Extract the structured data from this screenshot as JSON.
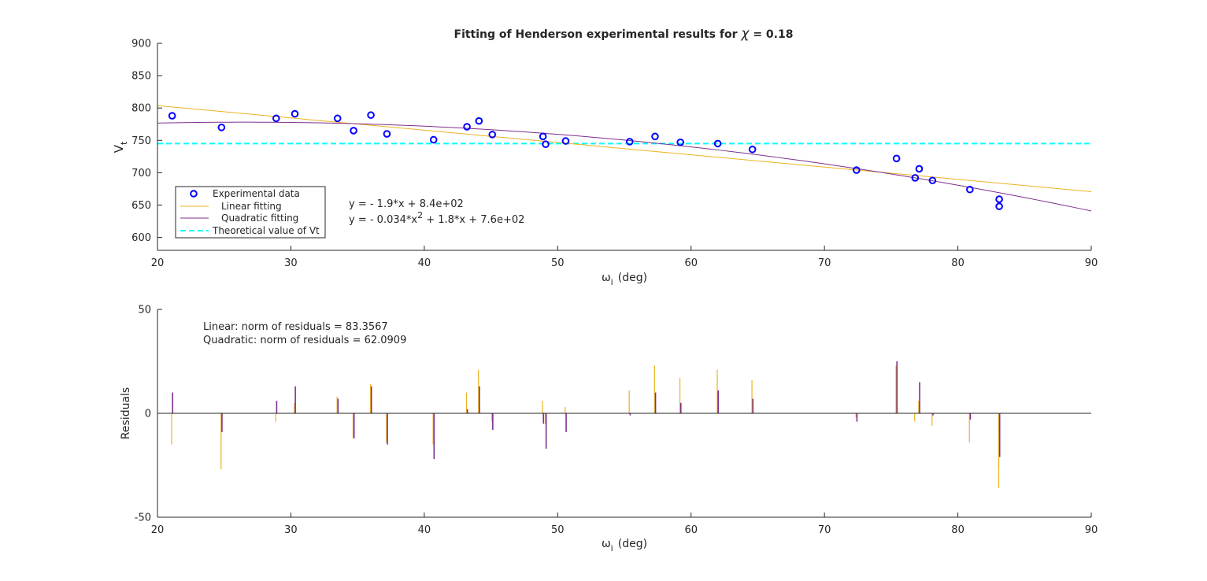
{
  "chart_data": [
    {
      "type": "scatter",
      "title_prefix": "Fitting of Henderson experimental results for",
      "title_symbol": "χ",
      "title_suffix": "= 0.18",
      "xlabel_symbol": "ω",
      "xlabel_sub": "i",
      "xlabel_unit": "(deg)",
      "ylabel_main": "V",
      "ylabel_sub": "t",
      "xlim": [
        20,
        90
      ],
      "ylim": [
        580,
        900
      ],
      "xticks": [
        "20",
        "30",
        "40",
        "50",
        "60",
        "70",
        "80",
        "90"
      ],
      "yticks": [
        "600",
        "650",
        "700",
        "750",
        "800",
        "850",
        "900"
      ],
      "grid": false,
      "legend_placement": "bottom-left",
      "legend": {
        "experimental": "Experimental data",
        "linear": "Linear fitting",
        "quadratic": "Quadratic fitting",
        "theoretical": "Theoretical value of Vt"
      },
      "equations": {
        "linear": "y = - 1.9*x + 8.4e+02",
        "quadratic_pre": "y = - 0.034*x",
        "quadratic_exp": "2",
        "quadratic_post": " + 1.8*x + 7.6e+02"
      },
      "colors": {
        "points": "#0000ff",
        "linear": "#edb120",
        "quadratic": "#7e2f8e",
        "theoretical": "#00ffff"
      },
      "theoretical_value": 745,
      "linear_coeffs": [
        -1.9,
        841.7
      ],
      "quadratic_coeffs": [
        -0.034,
        1.8,
        754.3
      ],
      "points": [
        [
          21.1,
          788
        ],
        [
          24.8,
          770
        ],
        [
          28.9,
          784
        ],
        [
          30.3,
          791
        ],
        [
          33.5,
          784
        ],
        [
          34.7,
          765
        ],
        [
          36.0,
          789
        ],
        [
          37.2,
          760
        ],
        [
          40.7,
          751
        ],
        [
          43.2,
          771
        ],
        [
          44.1,
          780
        ],
        [
          45.1,
          759
        ],
        [
          48.9,
          756
        ],
        [
          49.1,
          744
        ],
        [
          50.6,
          749
        ],
        [
          55.4,
          748
        ],
        [
          57.3,
          756
        ],
        [
          59.2,
          747
        ],
        [
          62.0,
          745
        ],
        [
          64.6,
          736
        ],
        [
          72.4,
          704
        ],
        [
          75.4,
          722
        ],
        [
          76.8,
          692
        ],
        [
          77.1,
          706
        ],
        [
          78.1,
          688
        ],
        [
          80.9,
          674
        ],
        [
          83.1,
          659
        ],
        [
          83.1,
          648
        ]
      ]
    },
    {
      "type": "bar",
      "subtype": "residual stems",
      "xlabel_symbol": "ω",
      "xlabel_sub": "i",
      "xlabel_unit": "(deg)",
      "ylabel": "Residuals",
      "xlim": [
        20,
        90
      ],
      "ylim": [
        -50,
        50
      ],
      "xticks": [
        "20",
        "30",
        "40",
        "50",
        "60",
        "70",
        "80",
        "90"
      ],
      "yticks": [
        "-50",
        "0",
        "50"
      ],
      "annotations": [
        "Linear: norm of residuals = 83.3567",
        "Quadratic: norm of residuals = 62.0909"
      ],
      "series": [
        {
          "color": "#edb120",
          "x": [
            21.1,
            24.8,
            28.9,
            30.3,
            33.5,
            34.7,
            36.0,
            37.2,
            40.7,
            43.2,
            44.1,
            45.1,
            48.9,
            49.1,
            50.6,
            55.4,
            57.3,
            59.2,
            62.0,
            64.6,
            72.4,
            75.4,
            76.8,
            77.1,
            78.1,
            80.9,
            83.1,
            83.1
          ],
          "values": [
            -15,
            -27,
            -4,
            5,
            8,
            -12,
            14,
            -14,
            -15,
            10,
            21,
            -4,
            6,
            -5,
            3,
            11,
            23,
            17,
            21,
            16,
            -2,
            23,
            -4,
            6,
            -6,
            -14,
            -26,
            -36
          ]
        },
        {
          "color": "#7e2f8e",
          "x": [
            21.1,
            24.8,
            28.9,
            30.3,
            33.5,
            34.7,
            36.0,
            37.2,
            40.7,
            43.2,
            44.1,
            45.1,
            48.9,
            49.1,
            50.6,
            55.4,
            57.3,
            59.2,
            62.0,
            64.6,
            72.4,
            75.4,
            76.8,
            77.1,
            78.1,
            80.9,
            83.1,
            83.1
          ],
          "values": [
            10,
            -9,
            6,
            13,
            7,
            -12,
            13,
            -15,
            -22,
            2,
            13,
            -8,
            -5,
            -17,
            -9,
            -1,
            10,
            5,
            11,
            7,
            -4,
            25,
            0,
            15,
            -1,
            -3,
            -10,
            -21
          ]
        }
      ]
    }
  ]
}
